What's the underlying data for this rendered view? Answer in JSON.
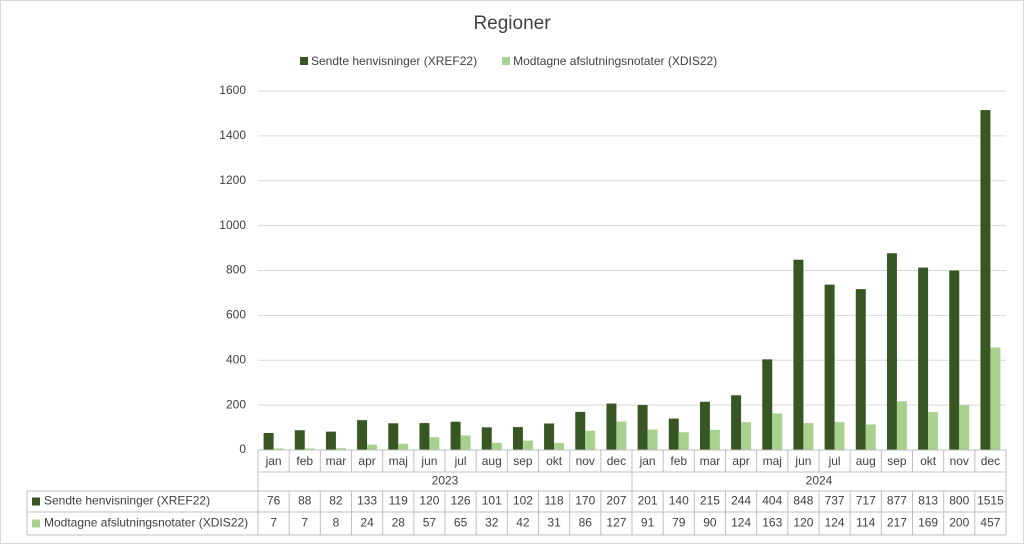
{
  "chart_data": {
    "type": "bar",
    "title": "Regioner",
    "category_groups": [
      {
        "name": "2023",
        "categories": [
          "jan",
          "feb",
          "mar",
          "apr",
          "maj",
          "jun",
          "jul",
          "aug",
          "sep",
          "okt",
          "nov",
          "dec"
        ]
      },
      {
        "name": "2024",
        "categories": [
          "jan",
          "feb",
          "mar",
          "apr",
          "maj",
          "jun",
          "jul",
          "aug",
          "sep",
          "okt",
          "nov",
          "dec"
        ]
      }
    ],
    "series": [
      {
        "name": "Sendte henvisninger (XREF22)",
        "color": "#375623",
        "values": [
          76,
          88,
          82,
          133,
          119,
          120,
          126,
          101,
          102,
          118,
          170,
          207,
          201,
          140,
          215,
          244,
          404,
          848,
          737,
          717,
          877,
          813,
          800,
          1515
        ]
      },
      {
        "name": "Modtagne afslutningsnotater (XDIS22)",
        "color": "#a9d18e",
        "values": [
          7,
          7,
          8,
          24,
          28,
          57,
          65,
          32,
          42,
          31,
          86,
          127,
          91,
          79,
          90,
          124,
          163,
          120,
          124,
          114,
          217,
          169,
          200,
          457
        ]
      }
    ],
    "ylim": [
      0,
      1600
    ],
    "yticks": [
      0,
      200,
      400,
      600,
      800,
      1000,
      1200,
      1400,
      1600
    ],
    "grid": true
  }
}
